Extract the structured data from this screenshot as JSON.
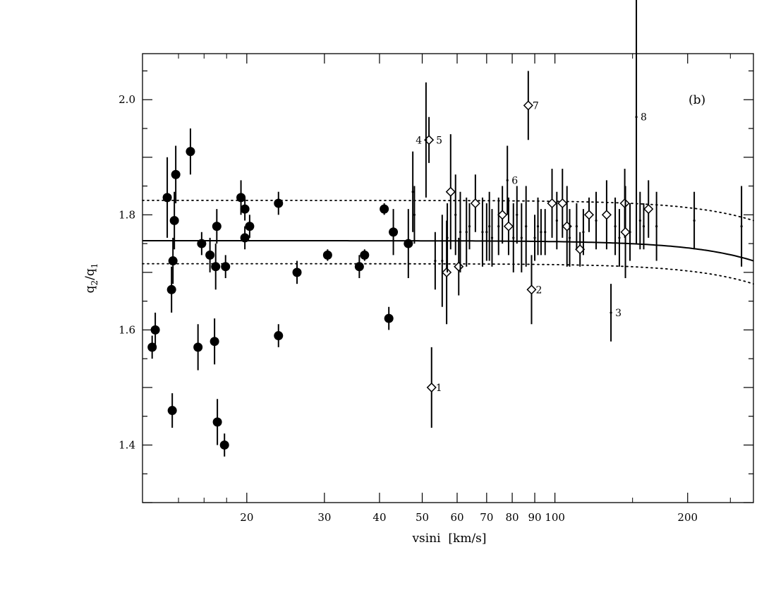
{
  "chart_data": {
    "type": "scatter",
    "panel_label": "(b)",
    "xlabel": "vsini  [km/s]",
    "ylabel_main": "q",
    "ylabel_sub1": "2",
    "ylabel_mid": "/q",
    "ylabel_sub2": "1",
    "x_scale": "log",
    "xlim": [
      11.6,
      282
    ],
    "ylim": [
      1.3,
      2.08
    ],
    "x_ticks": [
      20,
      30,
      40,
      50,
      60,
      70,
      80,
      90,
      100,
      200
    ],
    "x_tick_labels": [
      "20",
      "30",
      "40",
      "50",
      "60",
      "70",
      "80",
      "90",
      "100",
      "200"
    ],
    "y_ticks": [
      1.4,
      1.6,
      1.8,
      2.0
    ],
    "y_tick_labels": [
      "1.4",
      "1.6",
      "1.8",
      "2.0"
    ],
    "grid": false,
    "series": [
      {
        "marker": "filled-circle",
        "points": [
          {
            "x": 12.2,
            "y": 1.57,
            "err": 0.02
          },
          {
            "x": 12.4,
            "y": 1.6,
            "err": 0.03
          },
          {
            "x": 13.2,
            "y": 1.83,
            "err": 0.07
          },
          {
            "x": 13.5,
            "y": 1.67,
            "err": 0.04
          },
          {
            "x": 13.55,
            "y": 1.46,
            "err": 0.03
          },
          {
            "x": 13.6,
            "y": 1.72,
            "err": 0.04
          },
          {
            "x": 13.7,
            "y": 1.79,
            "err": 0.05
          },
          {
            "x": 13.8,
            "y": 1.87,
            "err": 0.05
          },
          {
            "x": 14.9,
            "y": 1.91,
            "err": 0.04
          },
          {
            "x": 15.5,
            "y": 1.57,
            "err": 0.04
          },
          {
            "x": 15.8,
            "y": 1.75,
            "err": 0.02
          },
          {
            "x": 16.5,
            "y": 1.73,
            "err": 0.03
          },
          {
            "x": 16.9,
            "y": 1.58,
            "err": 0.04
          },
          {
            "x": 17.0,
            "y": 1.71,
            "err": 0.04
          },
          {
            "x": 17.1,
            "y": 1.78,
            "err": 0.03
          },
          {
            "x": 17.15,
            "y": 1.44,
            "err": 0.04
          },
          {
            "x": 17.8,
            "y": 1.4,
            "err": 0.02
          },
          {
            "x": 17.9,
            "y": 1.71,
            "err": 0.02
          },
          {
            "x": 19.4,
            "y": 1.83,
            "err": 0.03
          },
          {
            "x": 19.8,
            "y": 1.81,
            "err": 0.02
          },
          {
            "x": 19.8,
            "y": 1.76,
            "err": 0.02
          },
          {
            "x": 20.3,
            "y": 1.78,
            "err": 0.02
          },
          {
            "x": 23.6,
            "y": 1.82,
            "err": 0.02
          },
          {
            "x": 23.6,
            "y": 1.59,
            "err": 0.02
          },
          {
            "x": 26.0,
            "y": 1.7,
            "err": 0.02
          },
          {
            "x": 30.5,
            "y": 1.73,
            "err": 0.01
          },
          {
            "x": 36.0,
            "y": 1.71,
            "err": 0.02
          },
          {
            "x": 37.0,
            "y": 1.73,
            "err": 0.01
          },
          {
            "x": 41.0,
            "y": 1.81,
            "err": 0.01
          },
          {
            "x": 42.0,
            "y": 1.62,
            "err": 0.02
          },
          {
            "x": 43.0,
            "y": 1.77,
            "err": 0.04
          },
          {
            "x": 46.5,
            "y": 1.75,
            "err": 0.06
          }
        ]
      },
      {
        "marker": "open-diamond",
        "points": [
          {
            "x": 52.5,
            "y": 1.5,
            "err": 0.07,
            "label": "1"
          },
          {
            "x": 51.8,
            "y": 1.93,
            "err": 0.04
          },
          {
            "x": 56.8,
            "y": 1.7,
            "err": 0.09
          },
          {
            "x": 58.0,
            "y": 1.84,
            "err": 0.1
          },
          {
            "x": 60.5,
            "y": 1.71,
            "err": 0.05
          },
          {
            "x": 66.0,
            "y": 1.82,
            "err": 0.05
          },
          {
            "x": 76.0,
            "y": 1.8,
            "err": 0.05
          },
          {
            "x": 78.5,
            "y": 1.78,
            "err": 0.05
          },
          {
            "x": 87.0,
            "y": 1.99,
            "err": 0.06,
            "label": "7"
          },
          {
            "x": 88.5,
            "y": 1.67,
            "err": 0.06,
            "label": "2"
          },
          {
            "x": 98.5,
            "y": 1.82,
            "err": 0.06
          },
          {
            "x": 104.0,
            "y": 1.82,
            "err": 0.06
          },
          {
            "x": 106.5,
            "y": 1.78,
            "err": 0.07
          },
          {
            "x": 114.0,
            "y": 1.74,
            "err": 0.03
          },
          {
            "x": 119.5,
            "y": 1.8,
            "err": 0.03
          },
          {
            "x": 131.0,
            "y": 1.8,
            "err": 0.06
          },
          {
            "x": 144.0,
            "y": 1.82,
            "err": 0.06
          },
          {
            "x": 144.5,
            "y": 1.77,
            "err": 0.08
          },
          {
            "x": 163.0,
            "y": 1.81,
            "err": 0.05
          }
        ]
      },
      {
        "marker": "small-dot",
        "points": [
          {
            "x": 47.6,
            "y": 1.84,
            "err": 0.07
          },
          {
            "x": 48.0,
            "y": 1.8,
            "err": 0.05
          },
          {
            "x": 51.0,
            "y": 1.93,
            "err": 0.1
          },
          {
            "x": 53.5,
            "y": 1.72,
            "err": 0.05
          },
          {
            "x": 55.5,
            "y": 1.72,
            "err": 0.08
          },
          {
            "x": 57.0,
            "y": 1.76,
            "err": 0.06
          },
          {
            "x": 59.5,
            "y": 1.8,
            "err": 0.07
          },
          {
            "x": 61.0,
            "y": 1.77,
            "err": 0.07
          },
          {
            "x": 63.0,
            "y": 1.77,
            "err": 0.06
          },
          {
            "x": 64.0,
            "y": 1.78,
            "err": 0.04
          },
          {
            "x": 68.5,
            "y": 1.77,
            "err": 0.06
          },
          {
            "x": 70.0,
            "y": 1.77,
            "err": 0.05
          },
          {
            "x": 71.0,
            "y": 1.78,
            "err": 0.06
          },
          {
            "x": 72.0,
            "y": 1.76,
            "err": 0.05
          },
          {
            "x": 74.5,
            "y": 1.78,
            "err": 0.05
          },
          {
            "x": 78.0,
            "y": 1.86,
            "err": 0.06,
            "label": "6"
          },
          {
            "x": 80.5,
            "y": 1.76,
            "err": 0.06
          },
          {
            "x": 82.0,
            "y": 1.8,
            "err": 0.05
          },
          {
            "x": 84.0,
            "y": 1.76,
            "err": 0.06
          },
          {
            "x": 86.0,
            "y": 1.78,
            "err": 0.07
          },
          {
            "x": 90.0,
            "y": 1.76,
            "err": 0.04
          },
          {
            "x": 91.5,
            "y": 1.78,
            "err": 0.05
          },
          {
            "x": 93.0,
            "y": 1.77,
            "err": 0.04
          },
          {
            "x": 95.0,
            "y": 1.77,
            "err": 0.04
          },
          {
            "x": 101.0,
            "y": 1.79,
            "err": 0.05
          },
          {
            "x": 108.0,
            "y": 1.76,
            "err": 0.05
          },
          {
            "x": 112.0,
            "y": 1.78,
            "err": 0.04
          },
          {
            "x": 116.0,
            "y": 1.77,
            "err": 0.04
          },
          {
            "x": 124.0,
            "y": 1.79,
            "err": 0.05
          },
          {
            "x": 134.0,
            "y": 1.63,
            "err": 0.05,
            "label": "3"
          },
          {
            "x": 137.0,
            "y": 1.78,
            "err": 0.05
          },
          {
            "x": 140.0,
            "y": 1.76,
            "err": 0.05
          },
          {
            "x": 148.0,
            "y": 1.77,
            "err": 0.05
          },
          {
            "x": 153.0,
            "y": 1.97,
            "err": 0.22,
            "label": "8"
          },
          {
            "x": 156.0,
            "y": 1.79,
            "err": 0.05
          },
          {
            "x": 159.0,
            "y": 1.78,
            "err": 0.04
          },
          {
            "x": 170.0,
            "y": 1.78,
            "err": 0.06
          },
          {
            "x": 207.0,
            "y": 1.79,
            "err": 0.05
          },
          {
            "x": 265.0,
            "y": 1.78,
            "err": 0.07
          }
        ]
      }
    ],
    "annotations": [
      {
        "text": "4",
        "x": 51.8,
        "y": 1.93,
        "side": "left"
      },
      {
        "text": "5",
        "x": 51.8,
        "y": 1.93,
        "side": "right"
      }
    ],
    "curves": [
      {
        "name": "model",
        "style": "solid",
        "q0": 1.755
      },
      {
        "name": "upper",
        "style": "dotted",
        "q0": 1.825
      },
      {
        "name": "lower",
        "style": "dotted",
        "q0": 1.715
      }
    ]
  }
}
